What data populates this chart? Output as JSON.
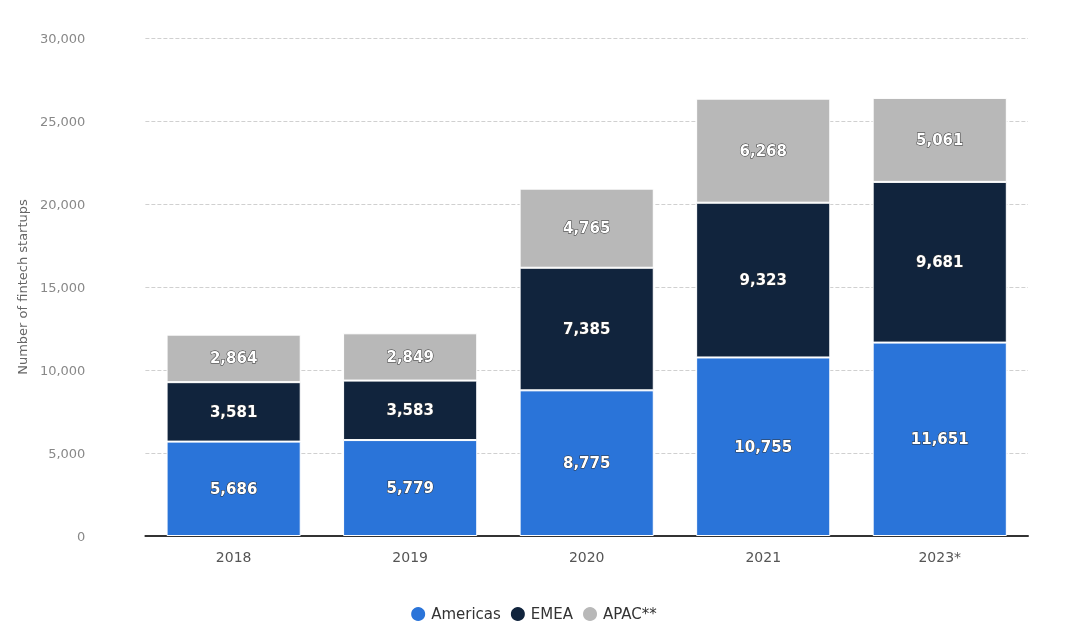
{
  "chart_data": {
    "type": "bar",
    "stacked": true,
    "ylabel": "Number of fintech startups",
    "categories": [
      "2018",
      "2019",
      "2020",
      "2021",
      "2023*"
    ],
    "series": [
      {
        "name": "Americas",
        "color": "#2a74d9",
        "values": [
          5686,
          5779,
          8775,
          10755,
          11651
        ],
        "value_labels": [
          "5,686",
          "5,779",
          "8,775",
          "10,755",
          "11,651"
        ]
      },
      {
        "name": "EMEA",
        "color": "#11243d",
        "values": [
          3581,
          3583,
          7385,
          9323,
          9681
        ],
        "value_labels": [
          "3,581",
          "3,583",
          "7,385",
          "9,323",
          "9,681"
        ]
      },
      {
        "name": "APAC**",
        "color": "#b8b8b8",
        "values": [
          2864,
          2849,
          4765,
          6268,
          5061
        ],
        "value_labels": [
          "2,864",
          "2,849",
          "4,765",
          "6,268",
          "5,061"
        ]
      }
    ],
    "ylim": [
      0,
      30000
    ],
    "yticks": [
      {
        "value": 0,
        "label": "0"
      },
      {
        "value": 5000,
        "label": "5,000"
      },
      {
        "value": 10000,
        "label": "10,000"
      },
      {
        "value": 15000,
        "label": "15,000"
      },
      {
        "value": 20000,
        "label": "20,000"
      },
      {
        "value": 25000,
        "label": "25,000"
      },
      {
        "value": 30000,
        "label": "30,000"
      }
    ],
    "grid": "y",
    "legend": "bottom"
  }
}
